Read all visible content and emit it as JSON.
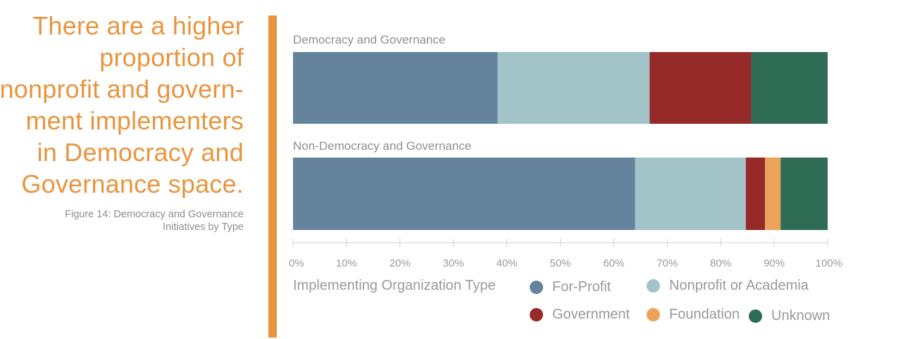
{
  "headline": {
    "lines": [
      "There are a higher",
      "proportion of",
      "nonprofit and govern-",
      "ment implementers",
      "in Democracy and",
      "Governance space."
    ]
  },
  "caption": {
    "lines": [
      "Figure 14: Democracy and Governance",
      "Initiatives by Type"
    ]
  },
  "colors": {
    "accent": "#e8953f",
    "for_profit": "#66839e",
    "nonprofit": "#a2c3c8",
    "government": "#962a28",
    "foundation": "#eba35a",
    "unknown": "#2e6c55"
  },
  "chart_data": {
    "type": "bar",
    "orientation": "horizontal",
    "stacked": true,
    "categories": [
      "Democracy and Governance",
      "Non-Democracy and Governance"
    ],
    "series": [
      {
        "name": "For-Profit",
        "values": [
          38.3,
          64.0
        ]
      },
      {
        "name": "Nonprofit or Academia",
        "values": [
          28.4,
          20.7
        ]
      },
      {
        "name": "Government",
        "values": [
          19.0,
          3.6
        ]
      },
      {
        "name": "Foundation",
        "values": [
          0.0,
          2.9
        ]
      },
      {
        "name": "Unknown",
        "values": [
          14.3,
          8.8
        ]
      }
    ],
    "xlim": [
      0,
      100
    ],
    "x_ticks": [
      "0%",
      "10%",
      "20%",
      "30%",
      "40%",
      "50%",
      "60%",
      "70%",
      "80%",
      "90%",
      "100%"
    ],
    "legend_title": "Implementing Organization Type",
    "legend_placement": "bottom",
    "grid": false
  }
}
